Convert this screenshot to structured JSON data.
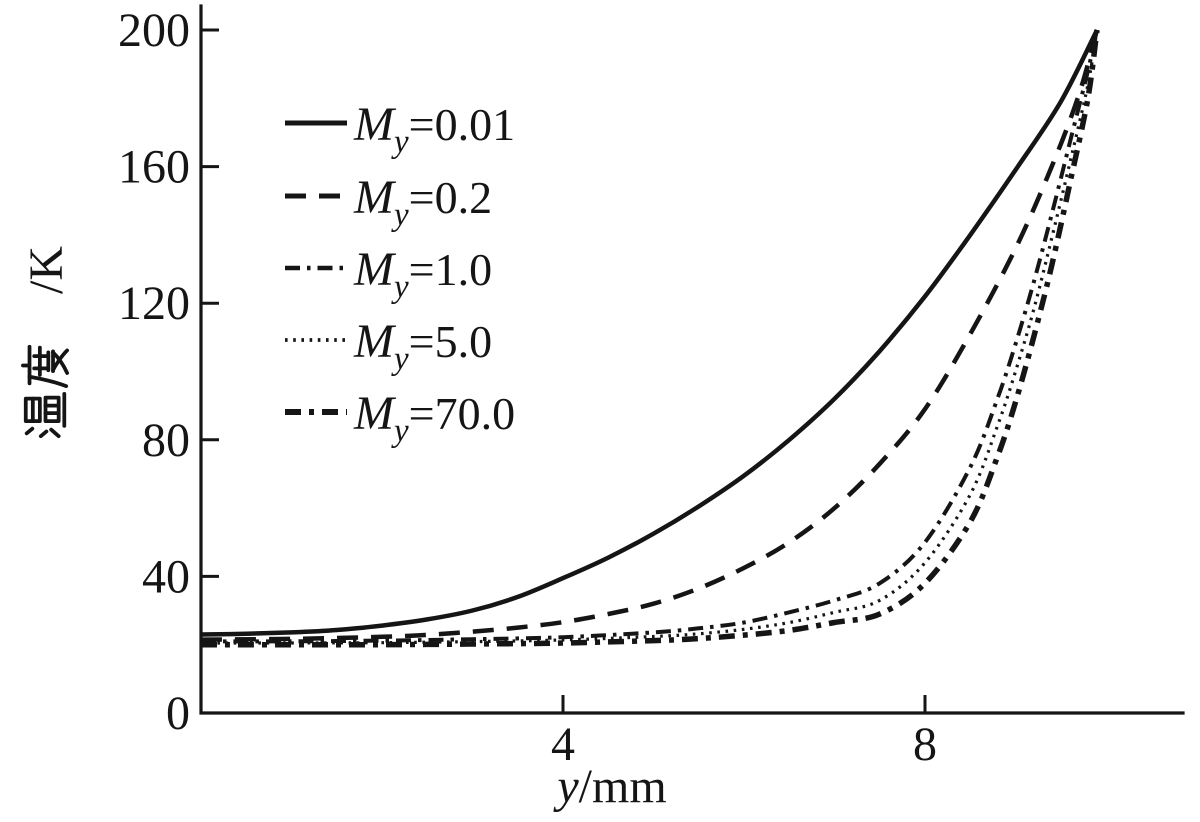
{
  "figure": {
    "background": "#ffffff",
    "ink": "#151515"
  },
  "chart_data": {
    "type": "line",
    "title": "",
    "xlabel": {
      "text": "y/mm",
      "italic": "y",
      "rest": "/mm"
    },
    "ylabel": {
      "text": "温度 /K",
      "cjk": "温度",
      "rest": "/K"
    },
    "xlim": [
      0,
      10.85
    ],
    "ylim": [
      0,
      206
    ],
    "xticks": [
      4,
      8
    ],
    "yticks": [
      0,
      40,
      80,
      120,
      160,
      200
    ],
    "grid": false,
    "legend_position": "upper-left-inside",
    "series": [
      {
        "label": {
          "text": "My=0.01",
          "symbol": "M",
          "subscript": "y",
          "value": "=0.01"
        },
        "style": "solid",
        "points": [
          [
            0,
            23
          ],
          [
            0.5,
            23.2
          ],
          [
            1,
            23.6
          ],
          [
            1.5,
            24.3
          ],
          [
            2,
            25.6
          ],
          [
            2.5,
            27.4
          ],
          [
            3,
            30
          ],
          [
            3.5,
            34
          ],
          [
            4,
            39.5
          ],
          [
            4.5,
            45.5
          ],
          [
            5,
            52.5
          ],
          [
            5.5,
            60.5
          ],
          [
            6,
            69.5
          ],
          [
            6.5,
            80
          ],
          [
            7,
            92
          ],
          [
            7.5,
            106
          ],
          [
            8,
            122
          ],
          [
            8.5,
            140
          ],
          [
            9,
            159
          ],
          [
            9.5,
            179
          ],
          [
            9.9,
            200
          ]
        ]
      },
      {
        "label": {
          "text": "My=0.2",
          "symbol": "M",
          "subscript": "y",
          "value": "=0.2"
        },
        "style": "dashed",
        "points": [
          [
            0,
            21.5
          ],
          [
            1,
            21.7
          ],
          [
            2,
            22.3
          ],
          [
            2.5,
            22.9
          ],
          [
            3,
            23.8
          ],
          [
            3.5,
            25
          ],
          [
            4,
            26.6
          ],
          [
            4.5,
            29
          ],
          [
            5,
            32
          ],
          [
            5.5,
            36.5
          ],
          [
            6,
            42.5
          ],
          [
            6.5,
            50
          ],
          [
            7,
            60
          ],
          [
            7.5,
            73
          ],
          [
            8,
            89
          ],
          [
            8.5,
            111
          ],
          [
            9,
            136
          ],
          [
            9.4,
            160
          ],
          [
            9.7,
            181
          ],
          [
            9.9,
            200
          ]
        ]
      },
      {
        "label": {
          "text": "My=1.0",
          "symbol": "M",
          "subscript": "y",
          "value": "=1.0"
        },
        "style": "dashdot",
        "points": [
          [
            0,
            21
          ],
          [
            1,
            21
          ],
          [
            2,
            21.2
          ],
          [
            3,
            21.6
          ],
          [
            4,
            22.2
          ],
          [
            5,
            23.6
          ],
          [
            5.5,
            24.8
          ],
          [
            6,
            26.5
          ],
          [
            6.5,
            29.5
          ],
          [
            7,
            33
          ],
          [
            7.5,
            38
          ],
          [
            8,
            50
          ],
          [
            8.5,
            72
          ],
          [
            8.8,
            92
          ],
          [
            9,
            108
          ],
          [
            9.2,
            126
          ],
          [
            9.4,
            146
          ],
          [
            9.6,
            167
          ],
          [
            9.8,
            188
          ],
          [
            9.9,
            200
          ]
        ]
      },
      {
        "label": {
          "text": "My=5.0",
          "symbol": "M",
          "subscript": "y",
          "value": "=5.0"
        },
        "style": "dotted",
        "points": [
          [
            0,
            20.5
          ],
          [
            1,
            20.5
          ],
          [
            2,
            20.6
          ],
          [
            3,
            20.9
          ],
          [
            4,
            21.4
          ],
          [
            5,
            22.4
          ],
          [
            5.5,
            23.2
          ],
          [
            6,
            24.5
          ],
          [
            6.5,
            26.5
          ],
          [
            7,
            29.5
          ],
          [
            7.5,
            33
          ],
          [
            8,
            44
          ],
          [
            8.5,
            64
          ],
          [
            8.8,
            84
          ],
          [
            9,
            100
          ],
          [
            9.2,
            118
          ],
          [
            9.4,
            139
          ],
          [
            9.6,
            161
          ],
          [
            9.8,
            184
          ],
          [
            9.9,
            200
          ]
        ]
      },
      {
        "label": {
          "text": "My=70.0",
          "symbol": "M",
          "subscript": "y",
          "value": "=70.0"
        },
        "style": "dashdotbold",
        "points": [
          [
            0,
            20
          ],
          [
            1,
            20
          ],
          [
            2,
            20
          ],
          [
            3,
            20.2
          ],
          [
            4,
            20.5
          ],
          [
            5,
            21.2
          ],
          [
            5.5,
            21.8
          ],
          [
            6,
            22.8
          ],
          [
            6.5,
            24.2
          ],
          [
            7,
            26.5
          ],
          [
            7.5,
            29
          ],
          [
            8,
            38
          ],
          [
            8.5,
            56
          ],
          [
            8.8,
            75
          ],
          [
            9,
            91
          ],
          [
            9.2,
            110
          ],
          [
            9.4,
            131
          ],
          [
            9.6,
            155
          ],
          [
            9.8,
            180
          ],
          [
            9.9,
            200
          ]
        ]
      }
    ]
  }
}
